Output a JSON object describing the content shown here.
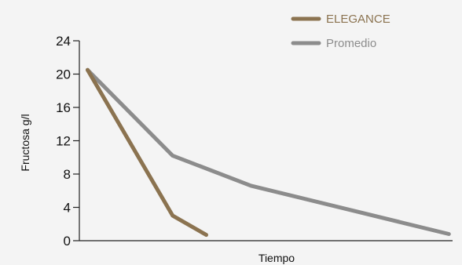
{
  "chart_data": {
    "type": "line",
    "ylabel": "Fructosa g/l",
    "xlabel": "Tiempo",
    "ylim": [
      0,
      24
    ],
    "yticks": [
      "0",
      "4",
      "8",
      "12",
      "16",
      "20",
      "24"
    ],
    "yticks_values": [
      0,
      4,
      8,
      12,
      16,
      20,
      24
    ],
    "x_range": [
      0,
      10
    ],
    "grid": false,
    "legend_position": "top",
    "series": [
      {
        "name": "ELEGANCE",
        "color": "#8b7350",
        "x": [
          0.22,
          2.5,
          3.4
        ],
        "y": [
          20.5,
          3.0,
          0.7
        ]
      },
      {
        "name": "Promedio",
        "color": "#8c8c8c",
        "x": [
          0.22,
          2.5,
          4.6,
          9.9
        ],
        "y": [
          20.5,
          10.2,
          6.6,
          0.8
        ]
      }
    ]
  }
}
